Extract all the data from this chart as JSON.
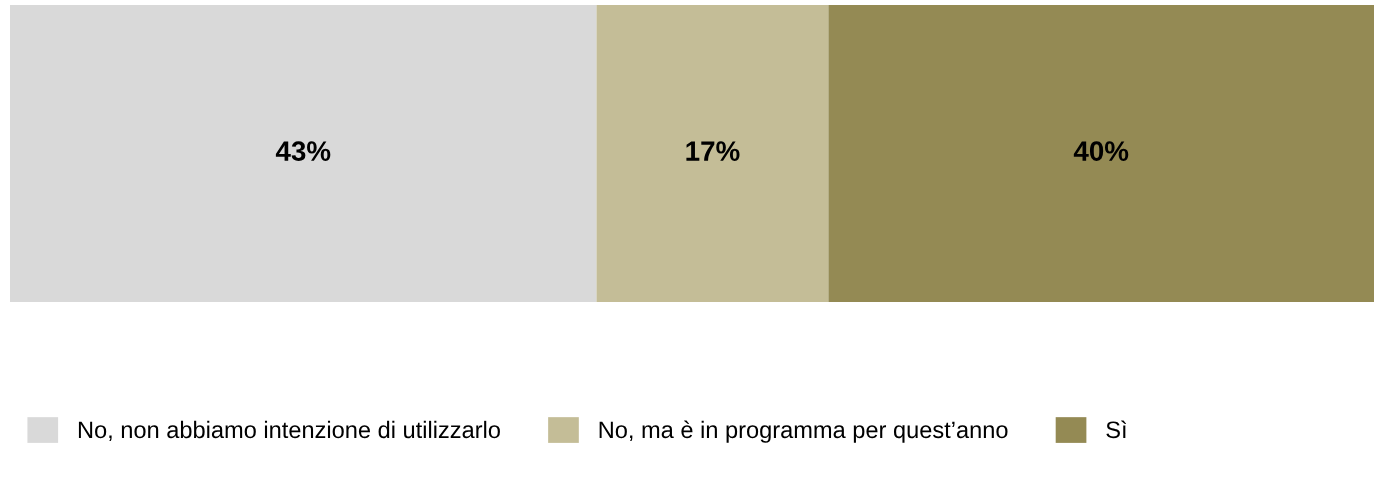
{
  "chart_data": {
    "type": "bar",
    "orientation": "horizontal",
    "stacked": true,
    "tick_labels": false,
    "categories": [
      null
    ],
    "series": [
      {
        "name": "No, non abbiamo intenzione di utilizzarlo",
        "color": "#d9d9d9",
        "values": [
          43
        ],
        "value_labels": [
          "43%"
        ]
      },
      {
        "name": "No, ma è in programma per quest’anno",
        "color": "#c4bd97",
        "values": [
          17
        ],
        "value_labels": [
          "17%"
        ]
      },
      {
        "name": "Sì",
        "color": "#948a54",
        "values": [
          40
        ],
        "value_labels": [
          "40%"
        ]
      }
    ],
    "legend": "bottom"
  }
}
